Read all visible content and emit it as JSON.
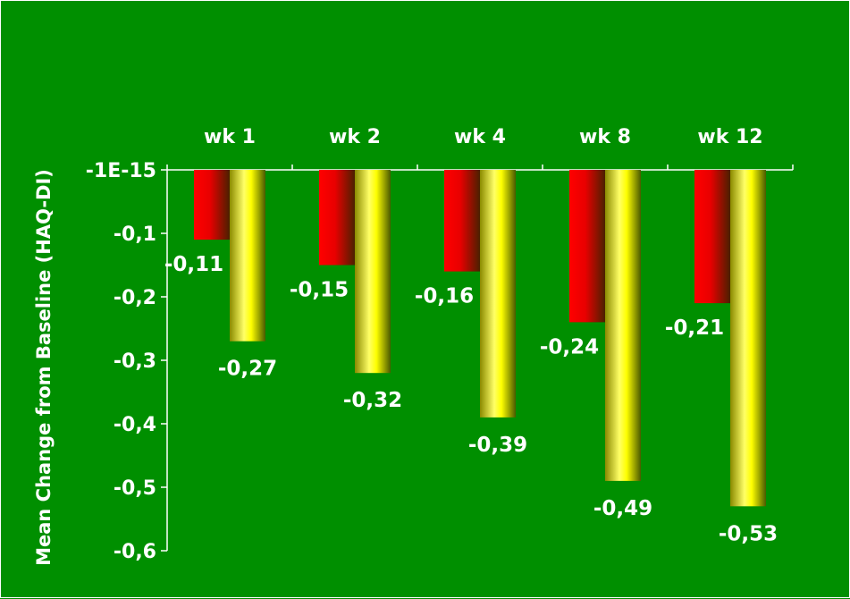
{
  "chart_data": {
    "type": "bar",
    "categories": [
      "wk 1",
      "wk 2",
      "wk 4",
      "wk 8",
      "wk 12"
    ],
    "series": [
      {
        "values": [
          -0.11,
          -0.15,
          -0.16,
          -0.24,
          -0.21
        ],
        "color": "#ff0000"
      },
      {
        "values": [
          -0.27,
          -0.32,
          -0.39,
          -0.49,
          -0.53
        ],
        "color": "#ffff00"
      }
    ],
    "data_labels": [
      [
        "-0,11",
        "-0,15",
        "-0,16",
        "-0,24",
        "-0,21"
      ],
      [
        "-0,27",
        "-0,32",
        "-0,39",
        "-0,49",
        "-0,53"
      ]
    ],
    "yticks": [
      -1e-15,
      -0.1,
      -0.2,
      -0.3,
      -0.4,
      -0.5,
      -0.6
    ],
    "ytick_labels": [
      "-1E-15",
      "-0,1",
      "-0,2",
      "-0,3",
      "-0,4",
      "-0,5",
      "-0,6"
    ],
    "ylim": [
      -0.6,
      0
    ],
    "ylabel": "Mean Change from Baseline (HAQ-DI)",
    "xaxis_position": "top",
    "background": "#008f00",
    "grid": false,
    "legend": "none"
  }
}
